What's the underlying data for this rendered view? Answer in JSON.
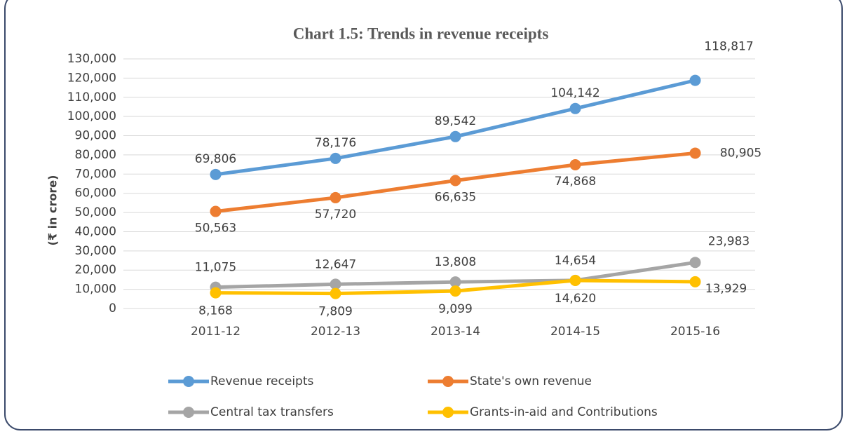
{
  "chart_data": {
    "type": "line",
    "title": "Chart 1.5: Trends in revenue receipts",
    "ylabel": "(₹ in crore)",
    "categories": [
      "2011-12",
      "2012-13",
      "2013-14",
      "2014-15",
      "2015-16"
    ],
    "series": [
      {
        "name": "Revenue receipts",
        "color": "#5b9bd5",
        "values": [
          69806,
          78176,
          89542,
          104142,
          118817
        ],
        "value_labels": [
          "69,806",
          "78,176",
          "89,542",
          "104,142",
          "118,817"
        ]
      },
      {
        "name": "State's own revenue",
        "color": "#ed7d31",
        "values": [
          50563,
          57720,
          66635,
          74868,
          80905
        ],
        "value_labels": [
          "50,563",
          "57,720",
          "66,635",
          "74,868",
          "80,905"
        ]
      },
      {
        "name": "Central tax transfers",
        "color": "#a5a5a5",
        "values": [
          11075,
          12647,
          13808,
          14654,
          23983
        ],
        "value_labels": [
          "11,075",
          "12,647",
          "13,808",
          "14,654",
          "23,983"
        ]
      },
      {
        "name": "Grants-in-aid and Contributions",
        "color": "#ffc000",
        "values": [
          8168,
          7809,
          9099,
          14620,
          13929
        ],
        "value_labels": [
          "8,168",
          "7,809",
          "9,099",
          "14,620",
          "13,929"
        ]
      }
    ],
    "ylim": [
      0,
      130000
    ],
    "yticks": [
      0,
      {
        "value": 10000,
        "label": "10,000"
      },
      {
        "value": 20000,
        "label": "20,000"
      },
      {
        "value": 30000,
        "label": "30,000"
      },
      {
        "value": 40000,
        "label": "40,000"
      },
      {
        "value": 50000,
        "label": "50,000"
      },
      {
        "value": 60000,
        "label": "60,000"
      },
      {
        "value": 70000,
        "label": "70,000"
      },
      {
        "value": 80000,
        "label": "80,000"
      },
      {
        "value": 90000,
        "label": "90,000"
      },
      {
        "value": 100000,
        "label": "100,000"
      },
      {
        "value": 110000,
        "label": "110,000"
      },
      {
        "value": 120000,
        "label": "120,000"
      },
      {
        "value": 130000,
        "label": "130,000"
      }
    ],
    "grid": true,
    "legend": "bottom"
  }
}
